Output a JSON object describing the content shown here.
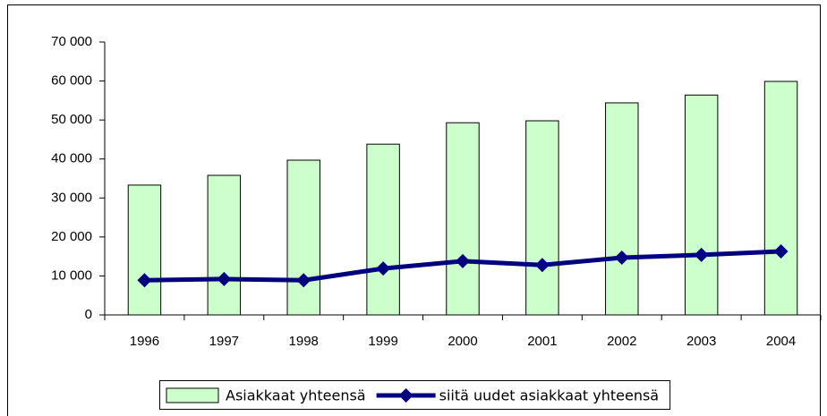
{
  "chart_data": {
    "type": "combo",
    "categories": [
      "1996",
      "1997",
      "1998",
      "1999",
      "2000",
      "2001",
      "2002",
      "2003",
      "2004"
    ],
    "series": [
      {
        "name": "Asiakkaat yhteensä",
        "type": "bar",
        "color": "#ccffcc",
        "values": [
          33300,
          35800,
          39700,
          43800,
          49300,
          49800,
          54400,
          56400,
          59900
        ]
      },
      {
        "name": "siitä uudet asiakkaat yhteensä",
        "type": "line",
        "color": "#000080",
        "values": [
          8900,
          9200,
          8900,
          11900,
          13800,
          12800,
          14700,
          15400,
          16300
        ]
      }
    ],
    "ylim": [
      0,
      70000
    ],
    "yticks": [
      {
        "value": 0,
        "label": "0"
      },
      {
        "value": 10000,
        "label": "10 000"
      },
      {
        "value": 20000,
        "label": "20 000"
      },
      {
        "value": 30000,
        "label": "30 000"
      },
      {
        "value": 40000,
        "label": "40 000"
      },
      {
        "value": 50000,
        "label": "50 000"
      },
      {
        "value": 60000,
        "label": "60 000"
      },
      {
        "value": 70000,
        "label": "70 000"
      }
    ],
    "grid": false,
    "legend": "bottom"
  }
}
